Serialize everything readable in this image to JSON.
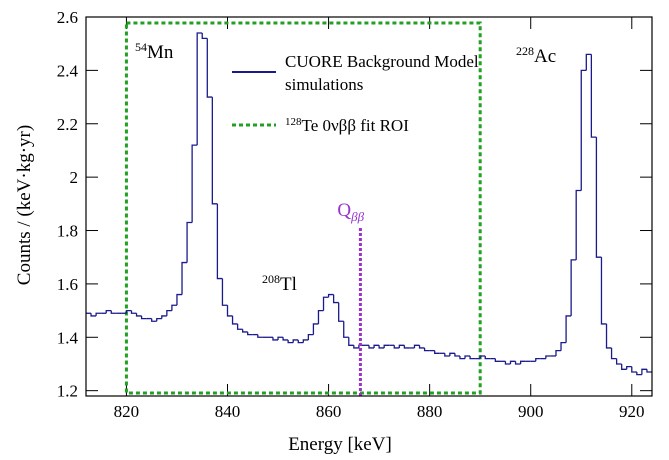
{
  "chart_data": {
    "type": "histogram",
    "x_label": "Energy [keV]",
    "y_label": "Counts / (keV·kg·yr)",
    "xlim": [
      812,
      924
    ],
    "ylim": [
      1.18,
      2.6
    ],
    "xticks": [
      820,
      840,
      860,
      880,
      900,
      920
    ],
    "yticks": [
      1.2,
      1.4,
      1.6,
      1.8,
      2,
      2.2,
      2.4,
      2.6
    ],
    "bins": [
      812,
      813,
      814,
      815,
      816,
      817,
      818,
      819,
      820,
      821,
      822,
      823,
      824,
      825,
      826,
      827,
      828,
      829,
      830,
      831,
      832,
      833,
      834,
      835,
      836,
      837,
      838,
      839,
      840,
      841,
      842,
      843,
      844,
      845,
      846,
      847,
      848,
      849,
      850,
      851,
      852,
      853,
      854,
      855,
      856,
      857,
      858,
      859,
      860,
      861,
      862,
      863,
      864,
      865,
      866,
      867,
      868,
      869,
      870,
      871,
      872,
      873,
      874,
      875,
      876,
      877,
      878,
      879,
      880,
      881,
      882,
      883,
      884,
      885,
      886,
      887,
      888,
      889,
      890,
      891,
      892,
      893,
      894,
      895,
      896,
      897,
      898,
      899,
      900,
      901,
      902,
      903,
      904,
      905,
      906,
      907,
      908,
      909,
      910,
      911,
      912,
      913,
      914,
      915,
      916,
      917,
      918,
      919,
      920,
      921,
      922,
      923,
      924
    ],
    "series": [
      {
        "name": "CUORE Background Model simulations",
        "color": "#1a1a8c",
        "values": [
          1.49,
          1.48,
          1.49,
          1.49,
          1.5,
          1.49,
          1.49,
          1.49,
          1.5,
          1.49,
          1.48,
          1.47,
          1.47,
          1.46,
          1.47,
          1.48,
          1.5,
          1.52,
          1.56,
          1.68,
          1.83,
          2.12,
          2.54,
          2.52,
          2.3,
          1.9,
          1.62,
          1.52,
          1.48,
          1.45,
          1.43,
          1.42,
          1.41,
          1.41,
          1.4,
          1.4,
          1.4,
          1.39,
          1.4,
          1.39,
          1.38,
          1.39,
          1.38,
          1.39,
          1.41,
          1.45,
          1.5,
          1.55,
          1.56,
          1.53,
          1.46,
          1.4,
          1.37,
          1.36,
          1.37,
          1.37,
          1.36,
          1.37,
          1.36,
          1.37,
          1.37,
          1.36,
          1.37,
          1.36,
          1.36,
          1.37,
          1.36,
          1.35,
          1.35,
          1.34,
          1.34,
          1.33,
          1.34,
          1.33,
          1.32,
          1.33,
          1.32,
          1.32,
          1.33,
          1.32,
          1.32,
          1.31,
          1.31,
          1.3,
          1.31,
          1.3,
          1.31,
          1.31,
          1.31,
          1.32,
          1.32,
          1.33,
          1.33,
          1.35,
          1.38,
          1.48,
          1.69,
          1.95,
          2.4,
          2.46,
          2.15,
          1.7,
          1.45,
          1.36,
          1.32,
          1.3,
          1.28,
          1.29,
          1.27,
          1.26,
          1.28,
          1.27
        ]
      }
    ],
    "roi": {
      "sup": "128",
      "name": "Te 0νββ fit ROI",
      "color": "#22a022",
      "range": [
        820,
        890
      ]
    },
    "q_value": {
      "text": "Q",
      "sub": "ββ",
      "color": "#9933cc",
      "x": 866.3
    },
    "annotations": [
      {
        "sup": "54",
        "text": "Mn"
      },
      {
        "sup": "208",
        "text": "Tl"
      },
      {
        "sup": "228",
        "text": "Ac"
      }
    ]
  }
}
